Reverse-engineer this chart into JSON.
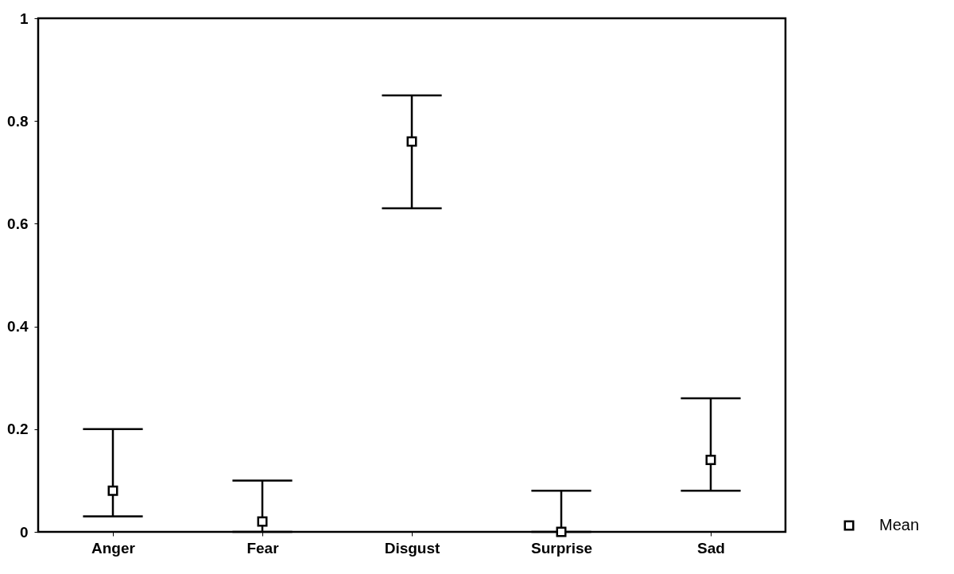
{
  "chart_data": {
    "type": "scatter",
    "categories": [
      "Anger",
      "Fear",
      "Disgust",
      "Surprise",
      "Sad"
    ],
    "series": [
      {
        "name": "Mean",
        "color": "#000000",
        "values": [
          0.08,
          0.02,
          0.76,
          0,
          0.14
        ],
        "errors": [
          [
            0.03,
            0.2
          ],
          [
            0,
            0.1
          ],
          [
            0.63,
            0.85
          ],
          [
            0,
            0.08
          ],
          [
            0.08,
            0.26
          ]
        ]
      }
    ],
    "ylim": [
      0,
      1
    ],
    "yticks": [
      0,
      0.2,
      0.4,
      0.6,
      0.8,
      1
    ],
    "marker": "square",
    "legend": "bottom right",
    "grid": false
  }
}
